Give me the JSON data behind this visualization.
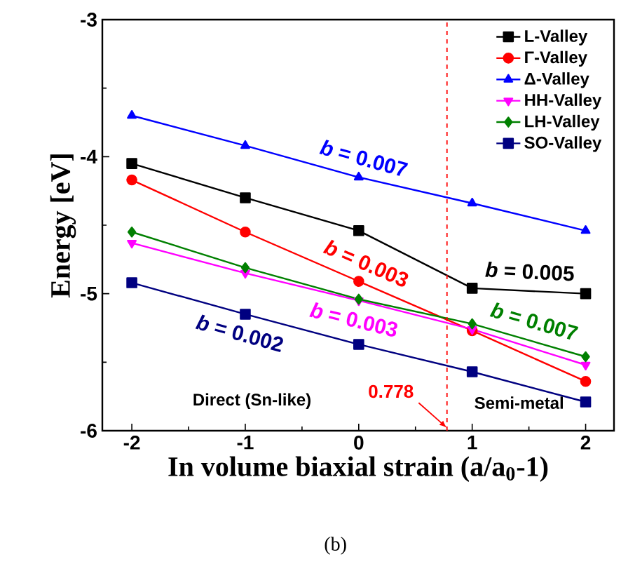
{
  "chart_data": {
    "type": "line",
    "xlabel": "In volume biaxial strain (a/a$_{0}$-1)",
    "ylabel": "Energy [eV]",
    "x": [
      -2,
      -1,
      0,
      1,
      2
    ],
    "xlim": [
      -2.26,
      2.25
    ],
    "ylim": [
      -6,
      -3
    ],
    "xticks": [
      -2,
      -1,
      0,
      1,
      2
    ],
    "yticks": [
      -6,
      -5,
      -4,
      -3
    ],
    "legend": "top right",
    "line_style": "solid",
    "series": [
      {
        "name": "L-Valley",
        "color": "#000000",
        "marker": "square",
        "values": [
          -4.05,
          -4.3,
          -4.54,
          -4.96,
          -5.0
        ]
      },
      {
        "name": "Γ-Valley",
        "color": "#ff0000",
        "marker": "circle",
        "values": [
          -4.17,
          -4.55,
          -4.91,
          -5.27,
          -5.64
        ]
      },
      {
        "name": "Δ-Valley",
        "color": "#0000ff",
        "marker": "triangle",
        "values": [
          -3.7,
          -3.92,
          -4.15,
          -4.34,
          -4.54
        ]
      },
      {
        "name": "HH-Valley",
        "color": "#ff00ff",
        "marker": "triangle-down",
        "values": [
          -4.63,
          -4.85,
          -5.05,
          -5.26,
          -5.52
        ]
      },
      {
        "name": "LH-Valley",
        "color": "#008000",
        "marker": "diamond",
        "values": [
          -4.55,
          -4.81,
          -5.04,
          -5.22,
          -5.46
        ]
      },
      {
        "name": "SO-Valley",
        "color": "#000080",
        "marker": "square",
        "values": [
          -4.92,
          -5.15,
          -5.37,
          -5.57,
          -5.79
        ]
      }
    ],
    "ref_lines": [
      {
        "axis": "x",
        "value": 0.778,
        "label": "0.778",
        "color": "#ff0000",
        "line_style": "dashed"
      }
    ],
    "annotations": [
      {
        "text": "*b* = 0.007",
        "x": 0,
        "y": -4.15
      },
      {
        "text": "*b* = 0.005",
        "x": 1.5,
        "y": -4.98
      },
      {
        "text": "*b* = 0.003",
        "x": 0,
        "y": -4.91
      },
      {
        "text": "*b* = 0.003",
        "x": 0,
        "y": -5.05
      },
      {
        "text": "*b* = 0.007",
        "x": 1.5,
        "y": -5.34
      },
      {
        "text": "*b* = 0.002",
        "x": -1,
        "y": -5.15
      },
      "Direct (Sn-like)",
      "Semi-metal",
      "(b)"
    ]
  }
}
